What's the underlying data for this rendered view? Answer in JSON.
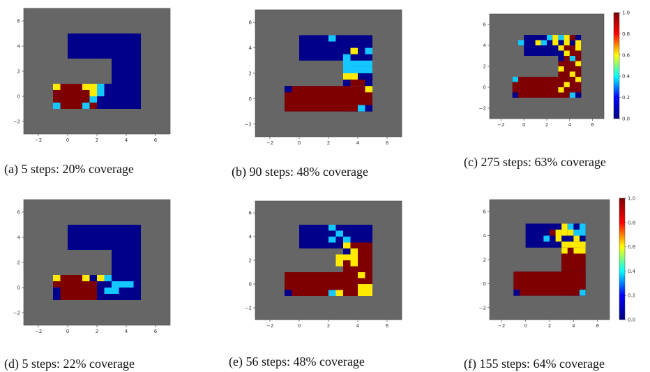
{
  "colors": {
    "grid_bg": "#666666",
    "unknown": "#00008b",
    "cmap_stops": [
      "#00007f",
      "#0000ff",
      "#00ffff",
      "#ffff00",
      "#ff0000",
      "#7f0000"
    ]
  },
  "chart_data": [
    {
      "type": "heatmap",
      "caption": "(a) 5 steps: 20% coverage",
      "xlim": [
        -3,
        7
      ],
      "ylim": [
        -3,
        7
      ],
      "xticks": [
        -2,
        0,
        2,
        4,
        6
      ],
      "yticks": [
        -2,
        0,
        2,
        4,
        6
      ],
      "colorbar": false,
      "cells_high": [
        [
          -1,
          -1,
          2
        ],
        [
          -1,
          1,
          2
        ]
      ],
      "cells_yellow": [
        [
          -1,
          0.5,
          1
        ],
        [
          1,
          1,
          1
        ],
        [
          1.5,
          1,
          1
        ],
        [
          1.5,
          0.5,
          1
        ]
      ],
      "cells_cyan": [
        [
          -1,
          -1,
          1
        ],
        [
          1,
          -1,
          1
        ],
        [
          2,
          0.5,
          1
        ],
        [
          2,
          0,
          1
        ]
      ]
    },
    {
      "type": "heatmap",
      "caption": "(b) 90 steps: 48% coverage",
      "xlim": [
        -3,
        7
      ],
      "ylim": [
        -3,
        7
      ],
      "xticks": [
        -2,
        0,
        2,
        4,
        6
      ],
      "yticks": [
        -2,
        0,
        2,
        4,
        6
      ],
      "colorbar": false
    },
    {
      "type": "heatmap",
      "caption": "(c) 275 steps: 63% coverage",
      "xlim": [
        -3,
        7
      ],
      "ylim": [
        -3,
        7
      ],
      "xticks": [
        -2,
        0,
        2,
        4,
        6
      ],
      "yticks": [
        -2,
        0,
        2,
        4,
        6
      ],
      "colorbar": true,
      "colorbar_ticks": [
        "0.0",
        "0.2",
        "0.4",
        "0.6",
        "0.8",
        "1.0"
      ]
    },
    {
      "type": "heatmap",
      "caption": "(d) 5 steps: 22% coverage",
      "xlim": [
        -3,
        7
      ],
      "ylim": [
        -3,
        7
      ],
      "xticks": [
        -2,
        0,
        2,
        4,
        6
      ],
      "yticks": [
        -2,
        0,
        2,
        4,
        6
      ],
      "colorbar": false
    },
    {
      "type": "heatmap",
      "caption": "(e) 56 steps: 48% coverage",
      "xlim": [
        -3,
        7
      ],
      "ylim": [
        -3,
        7
      ],
      "xticks": [
        -2,
        0,
        2,
        4,
        6
      ],
      "yticks": [
        -2,
        0,
        2,
        4,
        6
      ],
      "colorbar": false
    },
    {
      "type": "heatmap",
      "caption": "(f) 155 steps: 64% coverage",
      "xlim": [
        -3,
        7
      ],
      "ylim": [
        -3,
        7
      ],
      "xticks": [
        -2,
        0,
        2,
        4,
        6
      ],
      "yticks": [
        -2,
        0,
        2,
        4,
        6
      ],
      "colorbar": true,
      "colorbar_ticks": [
        "0.0",
        "0.2",
        "0.4",
        "0.6",
        "0.8",
        "1.0"
      ]
    }
  ]
}
